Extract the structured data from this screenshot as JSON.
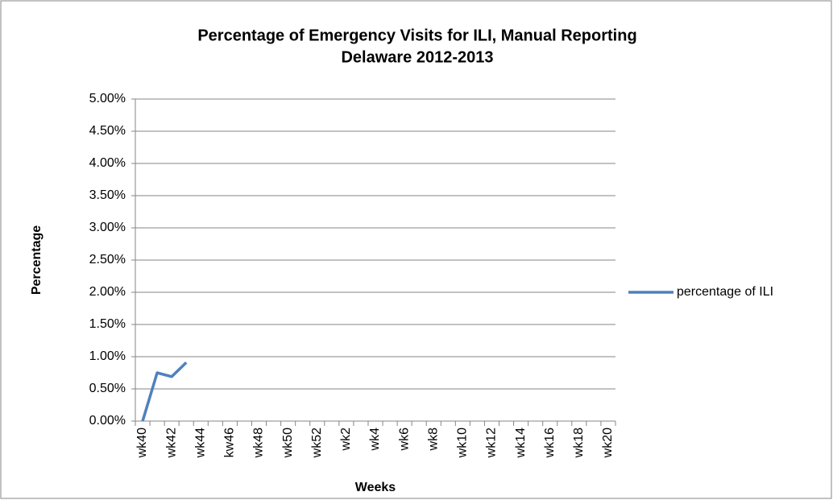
{
  "chart_data": {
    "type": "line",
    "title": [
      "Percentage of Emergency Visits for ILI, Manual Reporting",
      "Delaware 2012-2013"
    ],
    "x_label": "Weeks",
    "y_label": "Percentage",
    "categories": [
      "wk40",
      null,
      "wk42",
      null,
      "wk44",
      null,
      "kw46",
      null,
      "wk48",
      null,
      "wk50",
      null,
      "wk52",
      null,
      "wk2",
      null,
      "wk4",
      null,
      "wk6",
      null,
      "wk8",
      null,
      "wk10",
      null,
      "wk12",
      null,
      "wk14",
      null,
      "wk16",
      null,
      "wk18",
      null,
      "wk20"
    ],
    "series": [
      {
        "name": "percentage of ILI",
        "color": "#4f81bd",
        "values": [
          0,
          0.75,
          0.69,
          0.91,
          null,
          null,
          null,
          null,
          null,
          null,
          null,
          null,
          null,
          null,
          null,
          null,
          null,
          null,
          null,
          null,
          null,
          null,
          null,
          null,
          null,
          null,
          null,
          null,
          null,
          null,
          null,
          null,
          null
        ]
      }
    ],
    "ylim": [
      0,
      5
    ],
    "yticks": [
      {
        "value": 0,
        "label": "0.00%"
      },
      {
        "value": 0.5,
        "label": "0.50%"
      },
      {
        "value": 1,
        "label": "1.00%"
      },
      {
        "value": 1.5,
        "label": "1.50%"
      },
      {
        "value": 2,
        "label": "2.00%"
      },
      {
        "value": 2.5,
        "label": "2.50%"
      },
      {
        "value": 3,
        "label": "3.00%"
      },
      {
        "value": 3.5,
        "label": "3.50%"
      },
      {
        "value": 4,
        "label": "4.00%"
      },
      {
        "value": 4.5,
        "label": "4.50%"
      },
      {
        "value": 5,
        "label": "5.00%"
      }
    ],
    "grid": true,
    "legend": "right"
  }
}
